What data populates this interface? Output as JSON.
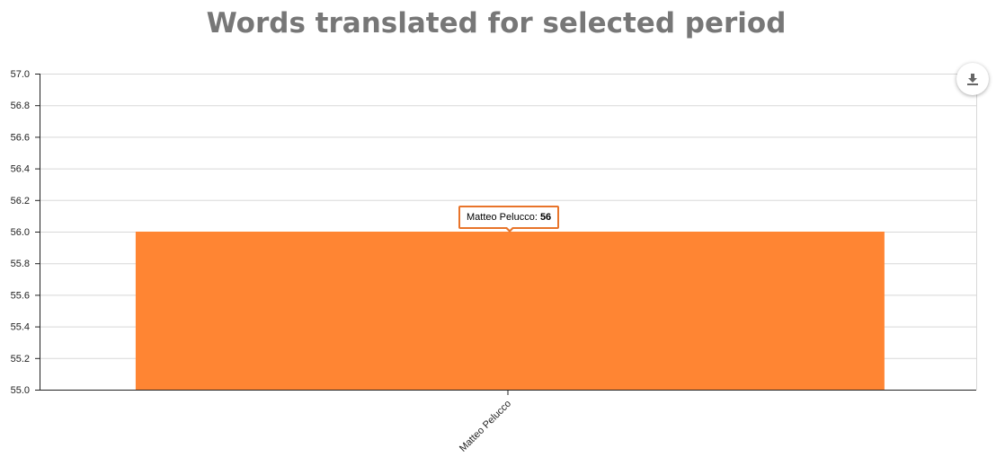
{
  "chart_data": {
    "type": "bar",
    "title": "Words translated for selected period",
    "xlabel": "",
    "ylabel": "",
    "categories": [
      "Matteo Pelucco"
    ],
    "values": [
      56
    ],
    "ylim": [
      55.0,
      57.0
    ],
    "yticks": [
      "55.0",
      "55.2",
      "55.4",
      "55.6",
      "55.8",
      "56.0",
      "56.2",
      "56.4",
      "56.6",
      "56.8",
      "57.0"
    ],
    "grid": true,
    "legend": "none",
    "bar_color": "#ff8533",
    "tooltip": {
      "label": "Matteo Pelucco: ",
      "value": "56"
    }
  },
  "toolbar": {
    "download_icon": "download-icon"
  }
}
